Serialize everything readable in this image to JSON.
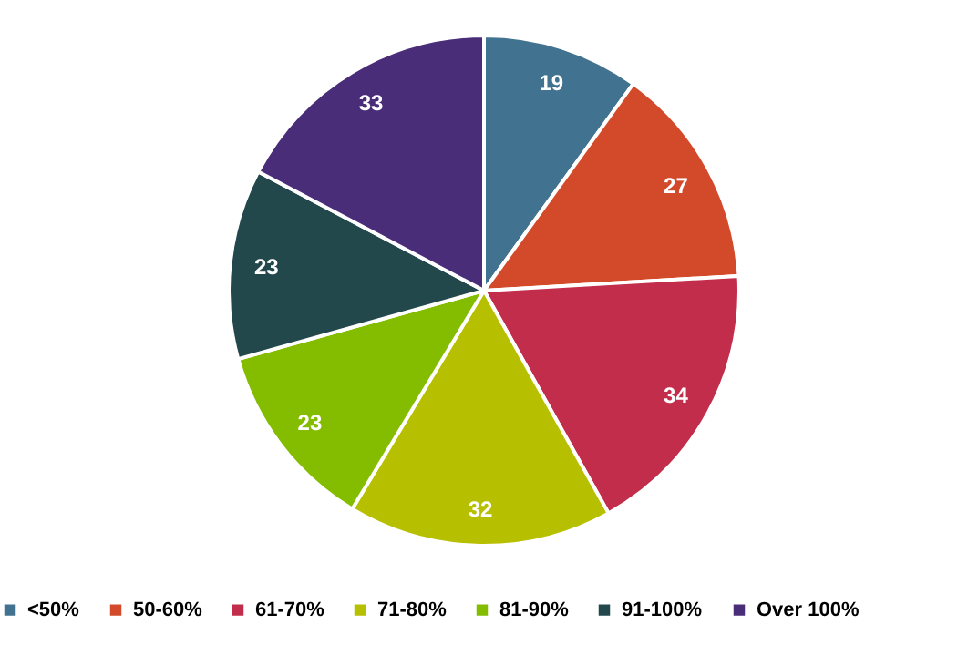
{
  "chart_data": {
    "type": "pie",
    "categories": [
      "<50%",
      "50-60%",
      "61-70%",
      "71-80%",
      "81-90%",
      "91-100%",
      "Over 100%"
    ],
    "values": [
      19,
      27,
      34,
      32,
      23,
      23,
      33
    ],
    "colors": [
      "#41728f",
      "#d24a2a",
      "#c12d4a",
      "#b7c000",
      "#84bc00",
      "#22484c",
      "#4a2d78"
    ],
    "data_labels": true,
    "legend": "bottom"
  }
}
